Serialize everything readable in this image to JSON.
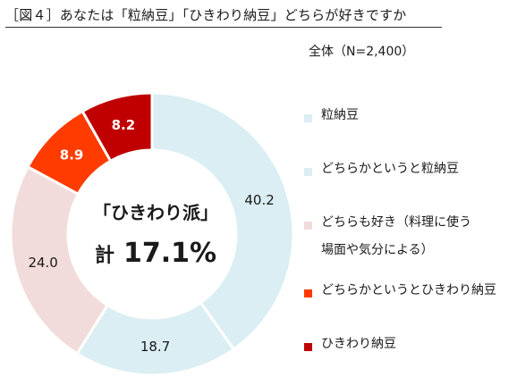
{
  "header": {
    "title": "［図４］あなたは「粒納豆」「ひきわり納豆」どちらが好きですか",
    "subtitle": "全体（N=2,400）"
  },
  "center": {
    "label": "「ひきわり派」",
    "total_prefix": "計",
    "total_value": "17.1%"
  },
  "chart_data": {
    "type": "pie",
    "title": "［図４］あなたは「粒納豆」「ひきわり納豆」どちらが好きですか",
    "subtitle": "全体（N=2,400）",
    "donut": true,
    "start": "12 o'clock, clockwise",
    "categories": [
      "粒納豆",
      "どちらかというと粒納豆",
      "どちらも好き（料理に使う場面や気分による）",
      "どちらかというとひきわり納豆",
      "ひきわり納豆"
    ],
    "values": [
      40.2,
      18.7,
      24.0,
      8.9,
      8.2
    ],
    "data_labels": [
      "40.2",
      "18.7",
      "24.0",
      "8.9",
      "8.2"
    ],
    "colors": [
      "#daeef3",
      "#daeef3",
      "#f2dcdb",
      "#ff3b00",
      "#c00000"
    ],
    "legend_position": "right"
  },
  "legend": {
    "items": [
      {
        "label": "粒納豆",
        "color": "#daeef3"
      },
      {
        "label": "どちらかというと粒納豆",
        "color": "#daeef3"
      },
      {
        "label": "どちらも好き（料理に使う場面や気分による）",
        "color": "#f2dcdb"
      },
      {
        "label": "どちらかというとひきわり納豆",
        "color": "#ff3b00"
      },
      {
        "label": "ひきわり納豆",
        "color": "#c00000"
      }
    ]
  }
}
